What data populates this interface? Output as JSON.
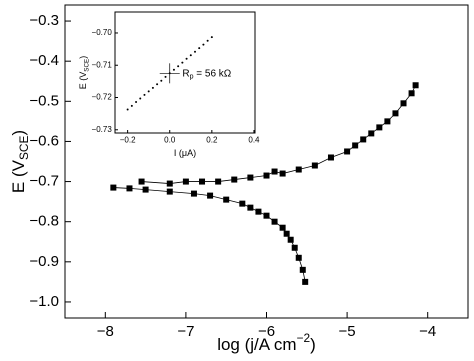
{
  "chart_data": [
    {
      "type": "scatter",
      "xlabel": {
        "text": "log (j/A cm",
        "sup": "−2",
        "tail": ")"
      },
      "ylabel": {
        "text": "E (V",
        "sub": "SCE",
        "tail": ")"
      },
      "xlim": [
        -8.5,
        -3.5
      ],
      "ylim": [
        -1.04,
        -0.26
      ],
      "xticks": [
        {
          "value": -8,
          "label": "−8"
        },
        {
          "value": -7,
          "label": "−7"
        },
        {
          "value": -6,
          "label": "−6"
        },
        {
          "value": -5,
          "label": "−5"
        },
        {
          "value": -4,
          "label": "−4"
        }
      ],
      "yticks": [
        {
          "value": -0.3,
          "label": "−0.3"
        },
        {
          "value": -0.4,
          "label": "−0.4"
        },
        {
          "value": -0.5,
          "label": "−0.5"
        },
        {
          "value": -0.6,
          "label": "−0.6"
        },
        {
          "value": -0.7,
          "label": "−0.7"
        },
        {
          "value": -0.8,
          "label": "−0.8"
        },
        {
          "value": -0.9,
          "label": "−0.9"
        },
        {
          "value": -1.0,
          "label": "−1.0"
        }
      ],
      "marker": "square",
      "series": [
        {
          "color": "#000000",
          "x": [
            -7.9,
            -7.7,
            -7.5,
            -7.2,
            -6.9,
            -6.7,
            -6.5,
            -6.3,
            -6.2,
            -6.1,
            -6.0,
            -5.9,
            -5.8,
            -5.75,
            -5.7,
            -5.65,
            -5.6,
            -5.55,
            -5.52
          ],
          "values": [
            -0.715,
            -0.717,
            -0.72,
            -0.725,
            -0.73,
            -0.735,
            -0.745,
            -0.755,
            -0.765,
            -0.775,
            -0.785,
            -0.8,
            -0.815,
            -0.83,
            -0.845,
            -0.865,
            -0.89,
            -0.92,
            -0.95
          ]
        },
        {
          "color": "#000000",
          "x": [
            -7.55,
            -7.2,
            -7.0,
            -6.8,
            -6.6,
            -6.4,
            -6.2,
            -6.0,
            -5.9,
            -5.8,
            -5.6,
            -5.4,
            -5.2,
            -5.0,
            -4.9,
            -4.8,
            -4.7,
            -4.6,
            -4.5,
            -4.4,
            -4.3,
            -4.2,
            -4.15
          ],
          "values": [
            -0.7,
            -0.705,
            -0.7,
            -0.7,
            -0.7,
            -0.695,
            -0.69,
            -0.685,
            -0.675,
            -0.68,
            -0.67,
            -0.66,
            -0.64,
            -0.625,
            -0.61,
            -0.595,
            -0.58,
            -0.565,
            -0.55,
            -0.53,
            -0.505,
            -0.48,
            -0.46
          ]
        }
      ]
    },
    {
      "type": "scatter",
      "xlabel": {
        "text": "I (μA)"
      },
      "ylabel": {
        "text": "E (V",
        "sub": "SCE",
        "tail": ")"
      },
      "xlim": [
        -0.26,
        0.405
      ],
      "ylim": [
        -0.731,
        -0.6935
      ],
      "xticks": [
        {
          "value": -0.2,
          "label": "−0.2"
        },
        {
          "value": 0.0,
          "label": "0.0"
        },
        {
          "value": 0.2,
          "label": "0.2"
        },
        {
          "value": 0.4,
          "label": "0.4"
        }
      ],
      "yticks": [
        {
          "value": -0.7,
          "label": "−0.70"
        },
        {
          "value": -0.71,
          "label": "−0.71"
        },
        {
          "value": -0.72,
          "label": "−0.72"
        },
        {
          "value": -0.73,
          "label": "−0.73"
        }
      ],
      "marker": "dot",
      "series": [
        {
          "color": "#000000",
          "x": [
            -0.2,
            -0.18,
            -0.16,
            -0.14,
            -0.12,
            -0.1,
            -0.08,
            -0.06,
            -0.04,
            -0.02,
            0.0,
            0.02,
            0.04,
            0.06,
            0.08,
            0.1,
            0.12,
            0.14,
            0.16,
            0.18,
            0.2
          ],
          "values": [
            -0.7237,
            -0.7226,
            -0.7214,
            -0.7203,
            -0.7192,
            -0.7181,
            -0.717,
            -0.7159,
            -0.7148,
            -0.7136,
            -0.7125,
            -0.7114,
            -0.7103,
            -0.7092,
            -0.708,
            -0.7069,
            -0.7058,
            -0.7047,
            -0.7036,
            -0.7024,
            -0.7013
          ]
        }
      ],
      "crosshair": {
        "x": 0.0,
        "y": -0.7125
      },
      "annotation": {
        "text": "R",
        "sub": "p",
        "tail": " = 56 kΩ",
        "x": 0.06,
        "y": -0.7125
      }
    }
  ]
}
